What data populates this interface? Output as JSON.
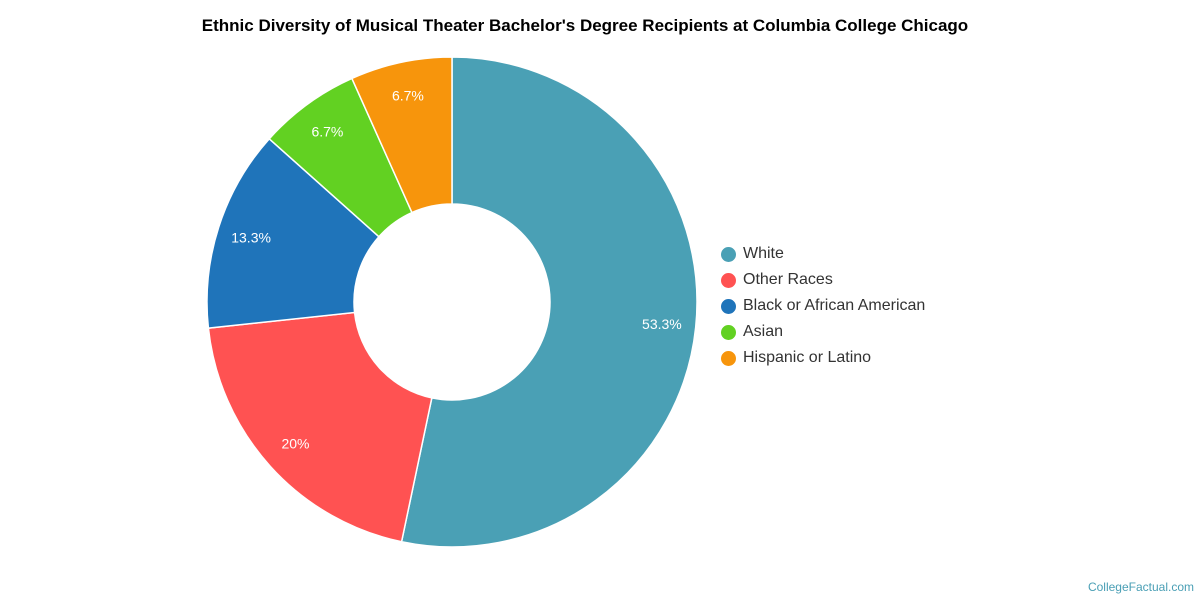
{
  "chart_data": {
    "type": "pie",
    "title": "Ethnic Diversity of Musical Theater Bachelor's Degree Recipients at Columbia College Chicago",
    "donut": true,
    "slices": [
      {
        "name": "White",
        "value": 53.3,
        "label": "53.3%",
        "color": "#4aa0b5"
      },
      {
        "name": "Other Races",
        "value": 20,
        "label": "20%",
        "color": "#ff5252"
      },
      {
        "name": "Black or African American",
        "value": 13.3,
        "label": "13.3%",
        "color": "#1f74ba"
      },
      {
        "name": "Asian",
        "value": 6.7,
        "label": "6.7%",
        "color": "#62d122"
      },
      {
        "name": "Hispanic or Latino",
        "value": 6.7,
        "label": "6.7%",
        "color": "#f7950c"
      }
    ],
    "legend_position": "right"
  },
  "watermark": "CollegeFactual.com"
}
